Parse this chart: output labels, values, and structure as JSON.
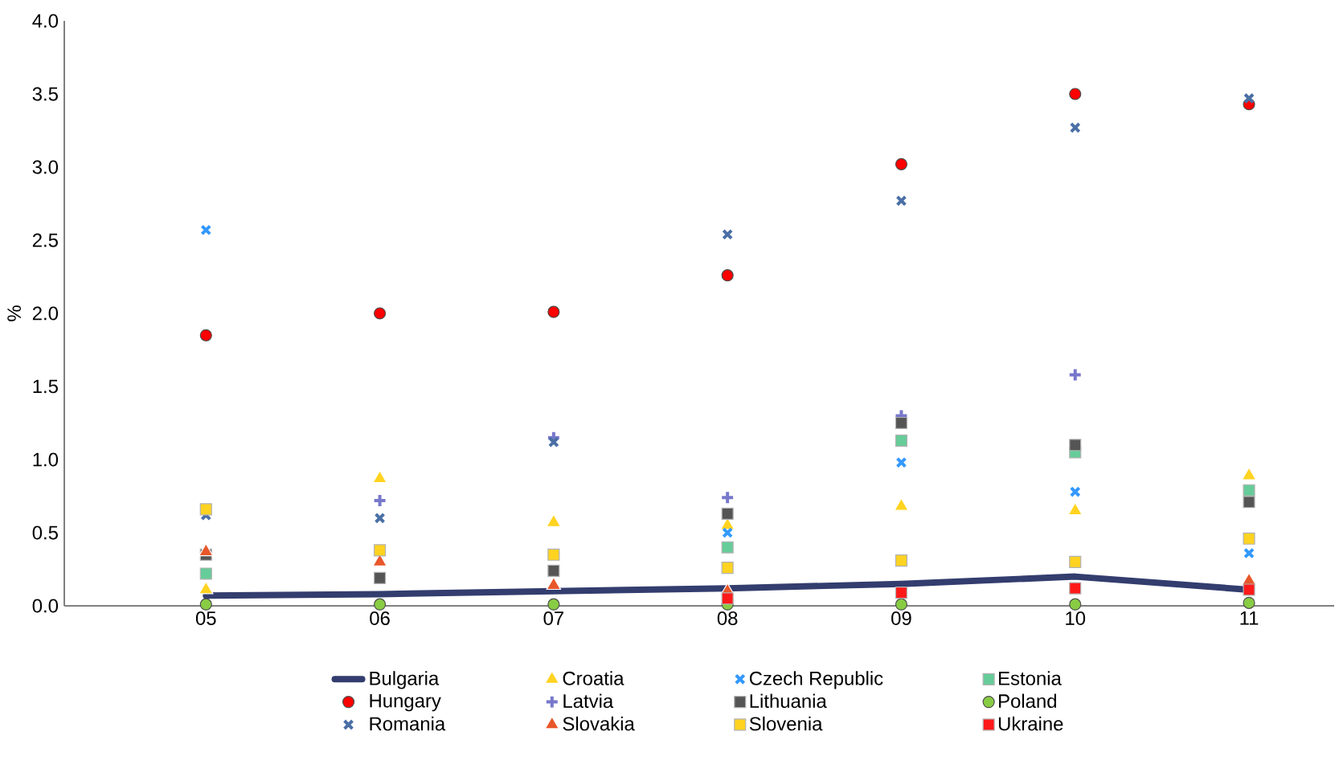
{
  "chart_data": {
    "type": "scatter",
    "ylabel": "%",
    "categories": [
      "05",
      "06",
      "07",
      "08",
      "09",
      "10",
      "11"
    ],
    "ylim": [
      0,
      4
    ],
    "yticks": [
      {
        "value": 0,
        "label": "0.0"
      },
      {
        "value": 0.5,
        "label": "0.5"
      },
      {
        "value": 1,
        "label": "1.0"
      },
      {
        "value": 1.5,
        "label": "1.5"
      },
      {
        "value": 2,
        "label": "2.0"
      },
      {
        "value": 2.5,
        "label": "2.5"
      },
      {
        "value": 3,
        "label": "3.0"
      },
      {
        "value": 3.5,
        "label": "3.5"
      },
      {
        "value": 4,
        "label": "4.0"
      }
    ],
    "legend": "bottom",
    "series": [
      {
        "name": "Bulgaria",
        "type": "line",
        "marker": "none",
        "color": "#333d6e",
        "values": [
          0.07,
          0.08,
          0.1,
          0.12,
          0.15,
          0.2,
          0.11
        ]
      },
      {
        "name": "Croatia",
        "marker": "triangle",
        "color": "#ffd320",
        "values": [
          0.11,
          0.87,
          0.57,
          0.55,
          0.68,
          0.65,
          0.89
        ]
      },
      {
        "name": "Czech Republic",
        "marker": "cross",
        "color": "#3399ff",
        "values": [
          2.57,
          null,
          null,
          0.5,
          0.98,
          0.78,
          0.36
        ]
      },
      {
        "name": "Estonia",
        "marker": "square",
        "color": "#66cc99",
        "values": [
          0.22,
          null,
          null,
          0.4,
          1.13,
          1.05,
          0.79
        ]
      },
      {
        "name": "Hungary",
        "marker": "circle",
        "color": "#ff0000",
        "values": [
          1.85,
          2.0,
          2.01,
          2.26,
          3.02,
          3.5,
          3.43
        ]
      },
      {
        "name": "Latvia",
        "marker": "plus",
        "color": "#7777cc",
        "values": [
          null,
          0.72,
          1.15,
          0.74,
          1.3,
          1.58,
          null
        ]
      },
      {
        "name": "Lithuania",
        "marker": "square",
        "color": "#555555",
        "values": [
          0.35,
          0.19,
          0.24,
          0.63,
          1.25,
          1.1,
          0.71
        ]
      },
      {
        "name": "Poland",
        "marker": "circle",
        "color": "#88cc44",
        "values": [
          0.01,
          0.01,
          0.01,
          0.01,
          0.01,
          0.01,
          0.02
        ]
      },
      {
        "name": "Romania",
        "marker": "cross",
        "color": "#4a6fa5",
        "values": [
          0.62,
          0.6,
          1.12,
          2.54,
          2.77,
          3.27,
          3.47
        ]
      },
      {
        "name": "Slovakia",
        "marker": "triangle",
        "color": "#e8572a",
        "values": [
          0.37,
          0.3,
          0.14,
          0.1,
          null,
          null,
          0.17
        ]
      },
      {
        "name": "Slovenia",
        "marker": "square",
        "color": "#ffd320",
        "values": [
          0.66,
          0.38,
          0.35,
          0.26,
          0.31,
          0.3,
          0.46
        ]
      },
      {
        "name": "Ukraine",
        "marker": "square",
        "color": "#ff1a1a",
        "values": [
          null,
          null,
          null,
          0.05,
          0.09,
          0.12,
          0.11
        ]
      }
    ]
  }
}
